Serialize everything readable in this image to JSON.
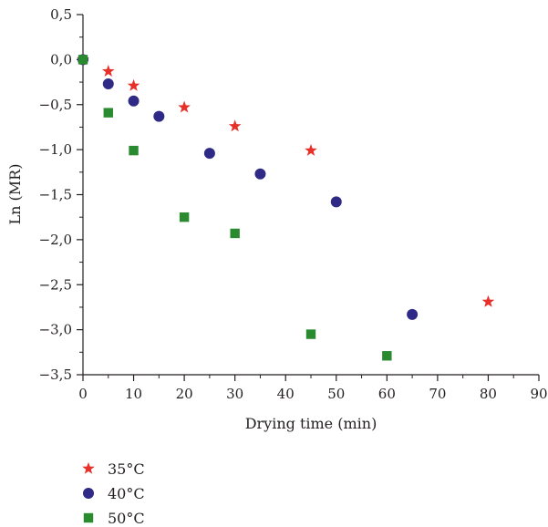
{
  "chart_data": {
    "type": "scatter",
    "xlabel": "Drying time (min)",
    "ylabel": "Ln (MR)",
    "xlim": [
      0,
      90
    ],
    "ylim": [
      -3.5,
      0.5
    ],
    "x_ticks": [
      "0",
      "10",
      "20",
      "30",
      "40",
      "50",
      "60",
      "70",
      "80",
      "90"
    ],
    "y_ticks": [
      "0,5",
      "0,0",
      "−0,5",
      "−1,0",
      "−1,5",
      "−2,0",
      "−2,5",
      "−3,0",
      "−3,5"
    ],
    "grid": false,
    "legend_position": "bottom-left",
    "series": [
      {
        "name": "35°C",
        "marker": "star",
        "color": "#e8302a",
        "points": [
          [
            0,
            0.0
          ],
          [
            5,
            -0.13
          ],
          [
            10,
            -0.29
          ],
          [
            20,
            -0.53
          ],
          [
            30,
            -0.74
          ],
          [
            45,
            -1.01
          ],
          [
            80,
            -2.69
          ]
        ]
      },
      {
        "name": "40°C",
        "marker": "circle",
        "color": "#2e2a86",
        "points": [
          [
            0,
            0.0
          ],
          [
            5,
            -0.27
          ],
          [
            10,
            -0.46
          ],
          [
            15,
            -0.63
          ],
          [
            25,
            -1.04
          ],
          [
            35,
            -1.27
          ],
          [
            50,
            -1.58
          ],
          [
            65,
            -2.83
          ]
        ]
      },
      {
        "name": "50°C",
        "marker": "square",
        "color": "#2a8a2f",
        "points": [
          [
            0,
            0.0
          ],
          [
            5,
            -0.59
          ],
          [
            10,
            -1.01
          ],
          [
            20,
            -1.75
          ],
          [
            30,
            -1.93
          ],
          [
            45,
            -3.05
          ],
          [
            60,
            -3.29
          ]
        ]
      }
    ]
  }
}
